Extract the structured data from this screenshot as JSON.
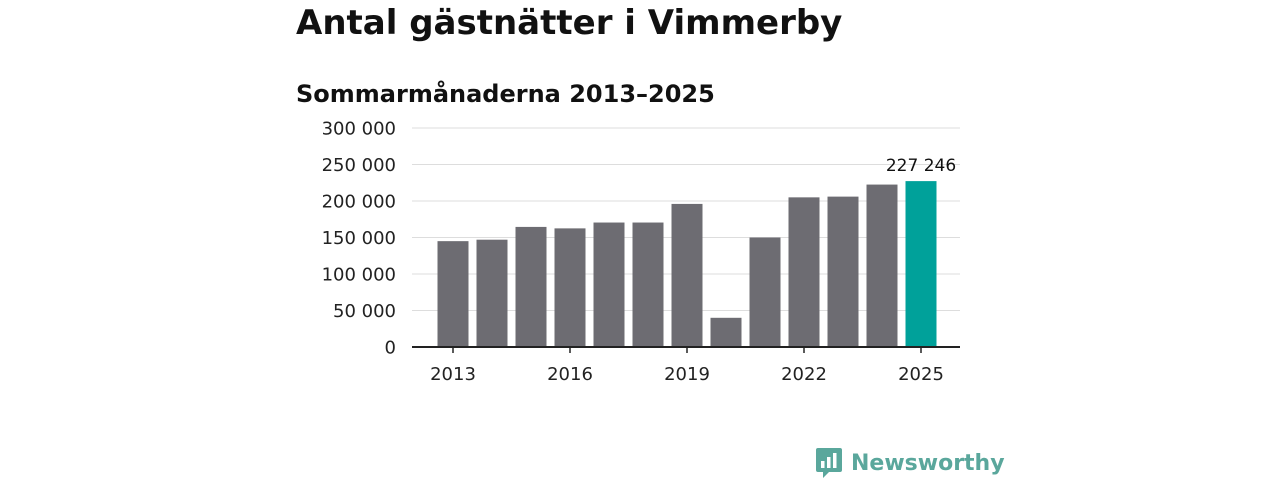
{
  "header": {
    "title": "Antal gästnätter i Vimmerby",
    "subtitle": "Sommarmånaderna 2013–2025"
  },
  "brand": {
    "name": "Newsworthy",
    "icon": "bar-chart-speech-bubble-icon",
    "color": "#5aa79c"
  },
  "colors": {
    "bar": "#6d6c72",
    "highlight": "#00a19a",
    "axis": "#222222",
    "grid": "#dddddd"
  },
  "chart_data": {
    "type": "bar",
    "categories": [
      "2013",
      "2014",
      "2015",
      "2016",
      "2017",
      "2018",
      "2019",
      "2020",
      "2021",
      "2022",
      "2023",
      "2024",
      "2025"
    ],
    "values": [
      145000,
      147000,
      164500,
      162500,
      170500,
      170500,
      196000,
      40000,
      150000,
      205000,
      206000,
      222500,
      227246
    ],
    "highlight_index": 12,
    "value_label": "227 246",
    "x_tick_labels": [
      "2013",
      "2016",
      "2019",
      "2022",
      "2025"
    ],
    "y_ticks": [
      0,
      50000,
      100000,
      150000,
      200000,
      250000,
      300000
    ],
    "y_tick_labels": [
      "0",
      "50 000",
      "100 000",
      "150 000",
      "200 000",
      "250 000",
      "300 000"
    ],
    "ylim": [
      0,
      300000
    ],
    "grid": true,
    "legend": "none"
  }
}
